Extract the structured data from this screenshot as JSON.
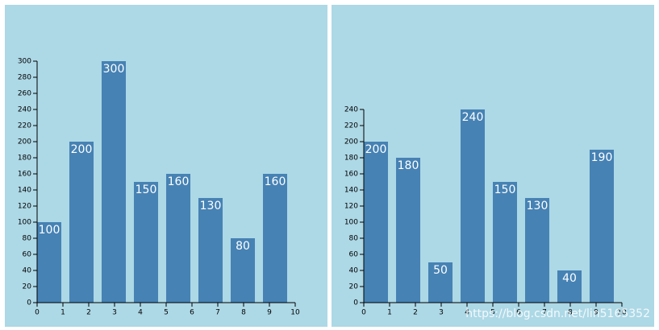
{
  "chart_data": [
    {
      "type": "bar",
      "color": "#4682b4",
      "background": "#add8e6",
      "categories": [
        null,
        null,
        null,
        null,
        null,
        null,
        null,
        null
      ],
      "values": [
        100,
        200,
        300,
        150,
        160,
        130,
        80,
        160
      ],
      "xlim": [
        0,
        10
      ],
      "xticks": [
        0,
        1,
        2,
        3,
        4,
        5,
        6,
        7,
        8,
        9,
        10
      ],
      "ylim": [
        0,
        300
      ],
      "yticks": [
        0,
        20,
        40,
        60,
        80,
        100,
        120,
        140,
        160,
        180,
        200,
        220,
        240,
        260,
        280,
        300
      ]
    },
    {
      "type": "bar",
      "color": "#4682b4",
      "background": "#add8e6",
      "categories": [
        null,
        null,
        null,
        null,
        null,
        null,
        null,
        null
      ],
      "values": [
        200,
        180,
        50,
        240,
        150,
        130,
        40,
        190
      ],
      "xlim": [
        0,
        10
      ],
      "xticks": [
        0,
        1,
        2,
        3,
        4,
        5,
        6,
        7,
        8,
        9,
        10
      ],
      "ylim": [
        0,
        240
      ],
      "yticks": [
        0,
        20,
        40,
        60,
        80,
        100,
        120,
        140,
        160,
        180,
        200,
        220,
        240
      ]
    }
  ],
  "watermark": "https://blog.csdn.net/lin5165352"
}
